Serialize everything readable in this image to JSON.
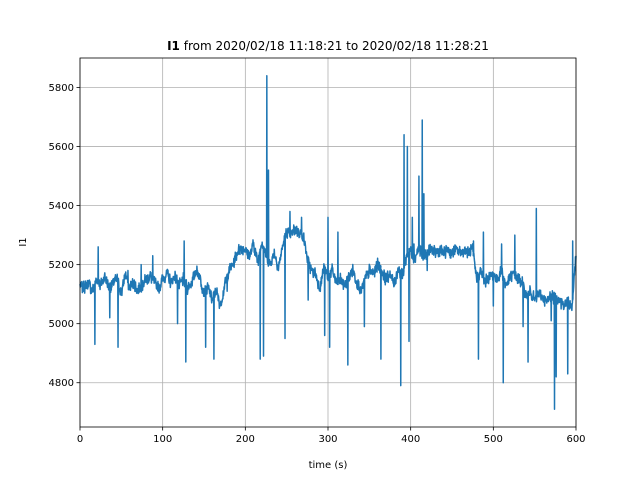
{
  "chart_data": {
    "type": "line",
    "title": {
      "variable": "I1",
      "rest": " from 2020/02/18 11:18:21 to 2020/02/18 11:28:21"
    },
    "xlabel": "time (s)",
    "ylabel": "I1",
    "xlim": [
      0,
      600
    ],
    "ylim": [
      4650,
      5900
    ],
    "xticks": [
      0,
      100,
      200,
      300,
      400,
      500,
      600
    ],
    "yticks": [
      4800,
      5000,
      5200,
      5400,
      5600,
      5800
    ],
    "grid": true,
    "colors": {
      "line": "#1f77b4",
      "grid": "#b0b0b0",
      "axes": "#000000"
    },
    "series": [
      {
        "x": [
          0,
          5,
          10,
          15,
          20,
          25,
          30,
          35,
          40,
          45,
          50,
          55,
          60,
          65,
          70,
          75,
          80,
          85,
          90,
          95,
          100,
          105,
          110,
          115,
          120,
          125,
          130,
          135,
          140,
          145,
          150,
          155,
          160,
          165,
          170,
          175,
          180,
          185,
          190,
          195,
          200,
          205,
          210,
          215,
          220,
          225,
          230,
          235,
          240,
          245,
          250,
          255,
          260,
          265,
          270,
          275,
          280,
          285,
          290,
          295,
          300,
          305,
          310,
          315,
          320,
          325,
          330,
          335,
          340,
          345,
          350,
          355,
          360,
          365,
          370,
          375,
          380,
          385,
          390,
          395,
          400,
          405,
          410,
          415,
          420,
          425,
          430,
          435,
          440,
          445,
          450,
          455,
          460,
          465,
          470,
          475,
          480,
          485,
          490,
          495,
          500,
          505,
          510,
          515,
          520,
          525,
          530,
          535,
          540,
          545,
          550,
          555,
          560,
          565,
          570,
          575,
          580,
          585,
          590,
          595,
          600
        ],
        "y": [
          5130,
          5120,
          5140,
          5110,
          5150,
          5130,
          5160,
          5120,
          5140,
          5150,
          5100,
          5170,
          5120,
          5140,
          5110,
          5130,
          5150,
          5160,
          5140,
          5120,
          5150,
          5170,
          5140,
          5160,
          5130,
          5150,
          5120,
          5140,
          5180,
          5160,
          5100,
          5120,
          5080,
          5110,
          5060,
          5130,
          5180,
          5200,
          5240,
          5260,
          5250,
          5230,
          5270,
          5210,
          5280,
          5230,
          5200,
          5240,
          5190,
          5260,
          5310,
          5300,
          5320,
          5310,
          5300,
          5220,
          5180,
          5170,
          5120,
          5190,
          5160,
          5180,
          5140,
          5150,
          5130,
          5160,
          5180,
          5140,
          5110,
          5150,
          5180,
          5170,
          5200,
          5180,
          5150,
          5170,
          5130,
          5190,
          5160,
          5230,
          5250,
          5220,
          5260,
          5230,
          5240,
          5250,
          5240,
          5250,
          5240,
          5250,
          5240,
          5250,
          5240,
          5250,
          5240,
          5250,
          5150,
          5180,
          5140,
          5160,
          5170,
          5150,
          5180,
          5130,
          5160,
          5170,
          5150,
          5140,
          5090,
          5110,
          5080,
          5100,
          5090,
          5070,
          5100,
          5080,
          5090,
          5060,
          5080,
          5050,
          5230
        ],
        "spikes": [
          {
            "x": 18,
            "y": 4930
          },
          {
            "x": 22,
            "y": 5260
          },
          {
            "x": 36,
            "y": 5020
          },
          {
            "x": 46,
            "y": 4920
          },
          {
            "x": 58,
            "y": 5180
          },
          {
            "x": 74,
            "y": 5200
          },
          {
            "x": 88,
            "y": 5230
          },
          {
            "x": 118,
            "y": 5000
          },
          {
            "x": 126,
            "y": 5280
          },
          {
            "x": 128,
            "y": 4870
          },
          {
            "x": 152,
            "y": 4920
          },
          {
            "x": 162,
            "y": 4880
          },
          {
            "x": 178,
            "y": 5110
          },
          {
            "x": 218,
            "y": 4880
          },
          {
            "x": 222,
            "y": 4890
          },
          {
            "x": 226,
            "y": 5840
          },
          {
            "x": 228,
            "y": 5520
          },
          {
            "x": 240,
            "y": 5180
          },
          {
            "x": 248,
            "y": 4950
          },
          {
            "x": 254,
            "y": 5380
          },
          {
            "x": 268,
            "y": 5360
          },
          {
            "x": 276,
            "y": 5080
          },
          {
            "x": 296,
            "y": 4960
          },
          {
            "x": 300,
            "y": 5360
          },
          {
            "x": 302,
            "y": 4920
          },
          {
            "x": 312,
            "y": 5310
          },
          {
            "x": 324,
            "y": 4860
          },
          {
            "x": 344,
            "y": 4990
          },
          {
            "x": 364,
            "y": 4880
          },
          {
            "x": 388,
            "y": 4790
          },
          {
            "x": 392,
            "y": 5640
          },
          {
            "x": 396,
            "y": 5600
          },
          {
            "x": 398,
            "y": 4940
          },
          {
            "x": 402,
            "y": 5360
          },
          {
            "x": 404,
            "y": 5270
          },
          {
            "x": 410,
            "y": 5500
          },
          {
            "x": 414,
            "y": 5690
          },
          {
            "x": 416,
            "y": 5440
          },
          {
            "x": 420,
            "y": 5180
          },
          {
            "x": 476,
            "y": 5280
          },
          {
            "x": 482,
            "y": 4880
          },
          {
            "x": 488,
            "y": 5310
          },
          {
            "x": 500,
            "y": 5060
          },
          {
            "x": 510,
            "y": 5270
          },
          {
            "x": 512,
            "y": 4800
          },
          {
            "x": 526,
            "y": 5300
          },
          {
            "x": 536,
            "y": 4990
          },
          {
            "x": 542,
            "y": 4870
          },
          {
            "x": 552,
            "y": 5390
          },
          {
            "x": 570,
            "y": 5010
          },
          {
            "x": 574,
            "y": 4710
          },
          {
            "x": 576,
            "y": 4820
          },
          {
            "x": 582,
            "y": 5050
          },
          {
            "x": 590,
            "y": 4830
          },
          {
            "x": 596,
            "y": 5280
          }
        ]
      }
    ]
  }
}
